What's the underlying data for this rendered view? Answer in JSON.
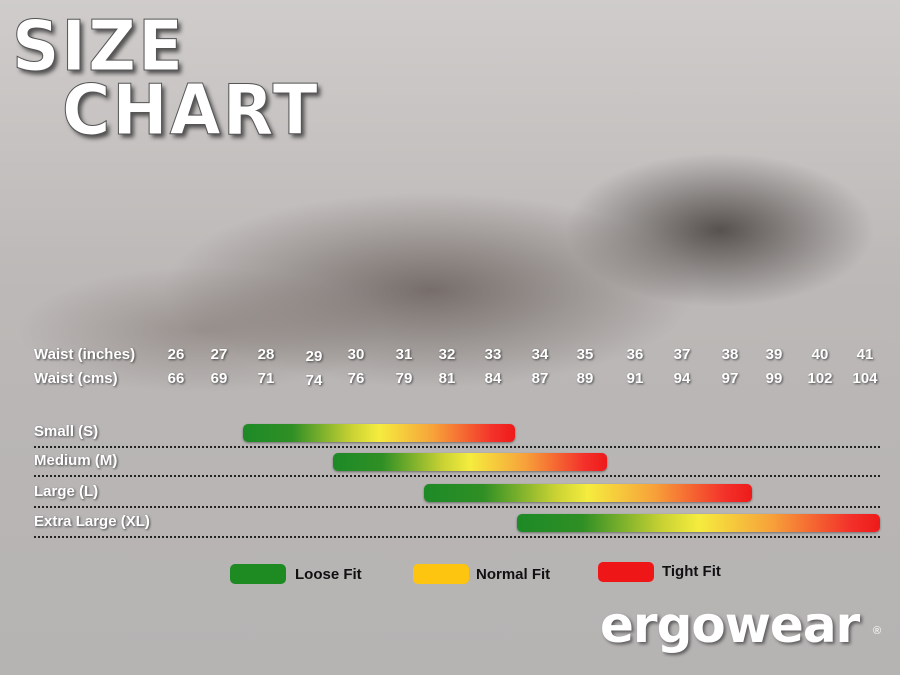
{
  "title_line1": "SIZE",
  "title_line2": "CHART",
  "chart_data": {
    "type": "bar",
    "orientation": "horizontal-range",
    "row_labels": {
      "inches": "Waist (inches)",
      "cms": "Waist (cms)"
    },
    "waist_inches": [
      26,
      27,
      28,
      29,
      30,
      31,
      32,
      33,
      34,
      35,
      36,
      37,
      38,
      39,
      40,
      41
    ],
    "waist_cms": [
      66,
      69,
      71,
      74,
      76,
      79,
      81,
      84,
      87,
      89,
      91,
      94,
      97,
      99,
      102,
      104
    ],
    "sizes": [
      {
        "label": "Small (S)",
        "from_inches": 28,
        "to_inches": 33
      },
      {
        "label": "Medium (M)",
        "from_inches": 30,
        "to_inches": 35
      },
      {
        "label": "Large (L)",
        "from_inches": 32,
        "to_inches": 38
      },
      {
        "label": "Extra Large (XL)",
        "from_inches": 34,
        "to_inches": 41
      }
    ],
    "legend": [
      {
        "label": "Loose Fit",
        "color": "#1e8a22"
      },
      {
        "label": "Normal Fit",
        "color": "#fdc410"
      },
      {
        "label": "Tight Fit",
        "color": "#ee1616"
      }
    ],
    "legend_placement": "bottom"
  },
  "brand": "ergowear",
  "registered": "®"
}
